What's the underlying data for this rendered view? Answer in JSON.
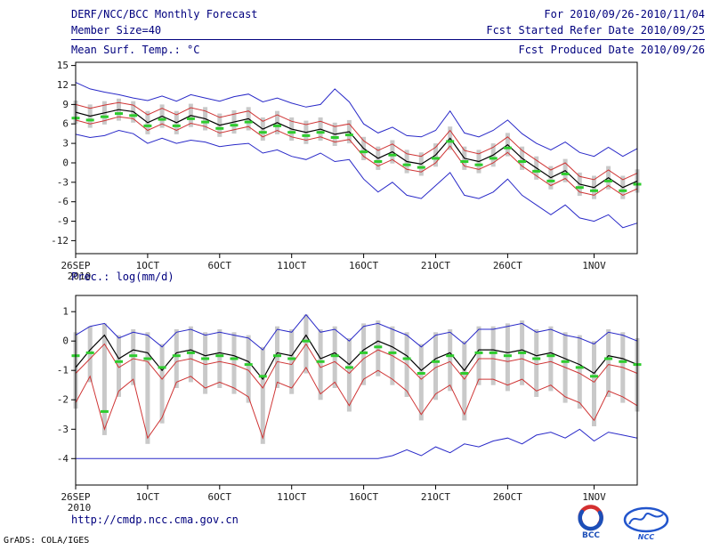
{
  "header": {
    "title": "DERF/NCC/BCC Monthly Forecast",
    "member_size": "Member Size=40",
    "forecast_range": "For 2010/09/26-2010/11/04",
    "refer_date": "Fcst Started Refer Date 2010/09/25",
    "produced_date": "Fcst Produced Date 2010/09/26"
  },
  "footer": {
    "url": "http://cmdp.ncc.cma.gov.cn",
    "grads_stamp": "GrADS: COLA/IGES",
    "bcc_logo_text": "BCC",
    "ncc_logo_text": "NCC"
  },
  "colors": {
    "header_text": "#00007e",
    "blue_line": "#2929c8",
    "red_line": "#cf3434",
    "black_line": "#000000",
    "green_dash": "#2ecc2e",
    "spread_bar": "#c9c9c9",
    "frame": "#000000"
  },
  "chart_data": [
    {
      "type": "line",
      "title": "Mean Surf. Temp.: °C",
      "ylabel": "°C",
      "ylim": [
        -14.0,
        15.5
      ],
      "yticks": [
        15,
        12,
        9,
        6,
        3,
        0,
        -3,
        -6,
        -9,
        -12
      ],
      "grid": false,
      "legend": "none",
      "xticks": [
        {
          "day": 0,
          "label": "26SEP",
          "sub": "2010"
        },
        {
          "day": 5,
          "label": "1OCT"
        },
        {
          "day": 10,
          "label": "6OCT"
        },
        {
          "day": 15,
          "label": "11OCT"
        },
        {
          "day": 20,
          "label": "16OCT"
        },
        {
          "day": 25,
          "label": "21OCT"
        },
        {
          "day": 30,
          "label": "26OCT"
        },
        {
          "day": 36,
          "label": "1NOV"
        }
      ],
      "series": [
        {
          "name": "ensemble-max",
          "color": "#2929c8",
          "values": [
            12.4,
            11.4,
            10.9,
            10.5,
            10.0,
            9.6,
            10.3,
            9.5,
            10.5,
            10.0,
            9.5,
            10.2,
            10.6,
            9.4,
            10.0,
            9.2,
            8.6,
            9.0,
            11.4,
            9.4,
            6.0,
            4.6,
            5.5,
            4.2,
            4.0,
            5.0,
            8.0,
            4.6,
            4.0,
            5.0,
            6.6,
            4.5,
            3.0,
            2.0,
            3.2,
            1.6,
            1.0,
            2.4,
            1.0,
            2.2
          ]
        },
        {
          "name": "upper-quartile",
          "color": "#cf3434",
          "values": [
            9.0,
            8.4,
            8.9,
            9.3,
            8.9,
            7.4,
            8.4,
            7.4,
            8.5,
            8.0,
            7.0,
            7.5,
            8.0,
            6.4,
            7.4,
            6.4,
            5.9,
            6.4,
            5.6,
            6.0,
            3.4,
            1.9,
            2.9,
            1.4,
            1.0,
            2.4,
            5.0,
            1.9,
            1.4,
            2.4,
            4.0,
            1.9,
            0.4,
            -1.1,
            0.0,
            -2.1,
            -2.6,
            -1.1,
            -2.6,
            -1.6
          ]
        },
        {
          "name": "ensemble-mean",
          "color": "#000000",
          "values": [
            7.8,
            7.2,
            7.7,
            8.2,
            7.9,
            6.2,
            7.2,
            6.2,
            7.3,
            6.8,
            5.8,
            6.3,
            6.8,
            5.2,
            6.2,
            5.2,
            4.7,
            5.2,
            4.4,
            4.8,
            2.2,
            0.7,
            1.7,
            0.2,
            -0.2,
            1.2,
            3.8,
            0.7,
            0.2,
            1.2,
            2.8,
            0.7,
            -0.8,
            -2.3,
            -1.2,
            -3.3,
            -3.8,
            -2.3,
            -3.8,
            -2.8
          ]
        },
        {
          "name": "lower-quartile",
          "color": "#cf3434",
          "values": [
            6.6,
            6.0,
            6.5,
            7.1,
            6.8,
            5.0,
            6.0,
            5.0,
            6.1,
            5.6,
            4.6,
            5.1,
            5.6,
            4.0,
            5.0,
            4.0,
            3.5,
            4.0,
            3.2,
            3.6,
            1.0,
            -0.5,
            0.5,
            -1.0,
            -1.4,
            0.0,
            2.6,
            -0.5,
            -1.0,
            0.0,
            1.6,
            -0.5,
            -2.0,
            -3.5,
            -2.4,
            -4.5,
            -5.0,
            -3.5,
            -5.0,
            -4.0
          ]
        },
        {
          "name": "ensemble-min",
          "color": "#2929c8",
          "values": [
            4.4,
            3.9,
            4.2,
            5.0,
            4.5,
            3.0,
            3.8,
            3.0,
            3.5,
            3.2,
            2.5,
            2.8,
            3.0,
            1.5,
            2.0,
            1.0,
            0.5,
            1.5,
            0.2,
            0.5,
            -2.5,
            -4.5,
            -3.0,
            -5.0,
            -5.5,
            -3.5,
            -1.5,
            -5.0,
            -5.5,
            -4.5,
            -2.5,
            -5.0,
            -6.5,
            -8.0,
            -6.5,
            -8.5,
            -9.0,
            -8.0,
            -10.0,
            -9.3
          ]
        }
      ],
      "bars": {
        "name": "ensemble-spread",
        "color": "#c9c9c9",
        "high": [
          9.6,
          9.0,
          9.5,
          9.9,
          9.5,
          8.0,
          9.0,
          8.0,
          9.1,
          8.6,
          7.6,
          8.1,
          8.6,
          7.0,
          8.0,
          7.0,
          6.5,
          7.0,
          6.2,
          6.6,
          4.0,
          2.5,
          3.5,
          2.0,
          1.6,
          3.0,
          5.6,
          2.5,
          2.0,
          3.0,
          4.6,
          2.5,
          1.0,
          -0.5,
          0.6,
          -1.5,
          -2.0,
          -0.5,
          -2.0,
          -1.0
        ],
        "low": [
          6.0,
          5.4,
          5.9,
          6.5,
          6.2,
          4.4,
          5.4,
          4.4,
          5.5,
          5.0,
          4.0,
          4.5,
          5.0,
          3.4,
          4.4,
          3.4,
          2.9,
          3.4,
          2.6,
          3.0,
          0.4,
          -1.1,
          -0.1,
          -1.6,
          -2.0,
          -0.6,
          2.0,
          -1.1,
          -1.6,
          -0.6,
          1.0,
          -1.1,
          -2.6,
          -4.1,
          -3.0,
          -5.1,
          -5.6,
          -4.1,
          -5.6,
          -4.6
        ]
      },
      "dashes": {
        "name": "green-median",
        "color": "#2ecc2e",
        "values": [
          6.9,
          6.6,
          7.1,
          7.6,
          7.3,
          5.7,
          6.7,
          5.7,
          6.8,
          6.3,
          5.3,
          5.8,
          6.3,
          4.7,
          5.7,
          4.7,
          4.2,
          4.7,
          3.9,
          4.3,
          1.7,
          0.2,
          1.2,
          -0.3,
          -0.7,
          0.7,
          3.3,
          0.2,
          -0.3,
          0.7,
          2.3,
          0.2,
          -1.3,
          -2.8,
          -1.7,
          -3.8,
          -4.3,
          -2.8,
          -4.3,
          -3.3
        ]
      }
    },
    {
      "type": "line",
      "title": "Prec.: log(mm/d)",
      "ylabel": "log(mm/d)",
      "ylim": [
        -4.9,
        1.55
      ],
      "yticks": [
        1,
        0,
        -1,
        -2,
        -3,
        -4
      ],
      "grid": false,
      "legend": "none",
      "xticks": [
        {
          "day": 0,
          "label": "26SEP",
          "sub": "2010"
        },
        {
          "day": 5,
          "label": "1OCT"
        },
        {
          "day": 10,
          "label": "6OCT"
        },
        {
          "day": 15,
          "label": "11OCT"
        },
        {
          "day": 20,
          "label": "16OCT"
        },
        {
          "day": 25,
          "label": "21OCT"
        },
        {
          "day": 30,
          "label": "26OCT"
        },
        {
          "day": 36,
          "label": "1NOV"
        }
      ],
      "series": [
        {
          "name": "ensemble-max",
          "color": "#2929c8",
          "values": [
            0.2,
            0.5,
            0.6,
            0.1,
            0.3,
            0.2,
            -0.2,
            0.3,
            0.4,
            0.2,
            0.3,
            0.2,
            0.1,
            -0.3,
            0.4,
            0.3,
            0.9,
            0.3,
            0.4,
            0.0,
            0.5,
            0.6,
            0.4,
            0.2,
            -0.2,
            0.2,
            0.3,
            -0.1,
            0.4,
            0.4,
            0.5,
            0.6,
            0.3,
            0.4,
            0.2,
            0.1,
            -0.1,
            0.3,
            0.2,
            0.0
          ]
        },
        {
          "name": "ensemble-mean",
          "color": "#000000",
          "values": [
            -0.9,
            -0.3,
            0.2,
            -0.6,
            -0.3,
            -0.4,
            -1.0,
            -0.4,
            -0.3,
            -0.5,
            -0.4,
            -0.5,
            -0.7,
            -1.3,
            -0.4,
            -0.5,
            0.2,
            -0.6,
            -0.4,
            -0.8,
            -0.3,
            0.0,
            -0.2,
            -0.5,
            -1.0,
            -0.6,
            -0.4,
            -1.0,
            -0.3,
            -0.3,
            -0.4,
            -0.3,
            -0.5,
            -0.4,
            -0.6,
            -0.8,
            -1.1,
            -0.5,
            -0.6,
            -0.8
          ]
        },
        {
          "name": "upper-quartile",
          "color": "#cf3434",
          "values": [
            -1.1,
            -0.6,
            -0.1,
            -0.9,
            -0.6,
            -0.7,
            -1.3,
            -0.7,
            -0.6,
            -0.8,
            -0.7,
            -0.8,
            -1.0,
            -1.6,
            -0.7,
            -0.8,
            -0.1,
            -0.9,
            -0.7,
            -1.1,
            -0.6,
            -0.3,
            -0.5,
            -0.8,
            -1.3,
            -0.9,
            -0.7,
            -1.3,
            -0.6,
            -0.6,
            -0.7,
            -0.6,
            -0.8,
            -0.7,
            -0.9,
            -1.1,
            -1.4,
            -0.8,
            -0.9,
            -1.1
          ]
        },
        {
          "name": "lower-quartile",
          "color": "#cf3434",
          "values": [
            -2.1,
            -1.2,
            -3.0,
            -1.7,
            -1.3,
            -3.3,
            -2.6,
            -1.4,
            -1.2,
            -1.6,
            -1.4,
            -1.6,
            -1.9,
            -3.3,
            -1.4,
            -1.6,
            -0.9,
            -1.8,
            -1.4,
            -2.2,
            -1.3,
            -1.0,
            -1.3,
            -1.7,
            -2.5,
            -1.8,
            -1.5,
            -2.5,
            -1.3,
            -1.3,
            -1.5,
            -1.3,
            -1.7,
            -1.5,
            -1.9,
            -2.1,
            -2.7,
            -1.7,
            -1.9,
            -2.2
          ]
        },
        {
          "name": "ensemble-min",
          "color": "#2929c8",
          "values": [
            -4.0,
            -4.0,
            -4.0,
            -4.0,
            -4.0,
            -4.0,
            -4.0,
            -4.0,
            -4.0,
            -4.0,
            -4.0,
            -4.0,
            -4.0,
            -4.0,
            -4.0,
            -4.0,
            -4.0,
            -4.0,
            -4.0,
            -4.0,
            -4.0,
            -4.0,
            -3.9,
            -3.7,
            -3.9,
            -3.6,
            -3.8,
            -3.5,
            -3.6,
            -3.4,
            -3.3,
            -3.5,
            -3.2,
            -3.1,
            -3.3,
            -3.0,
            -3.4,
            -3.1,
            -3.2,
            -3.3
          ]
        }
      ],
      "bars": {
        "name": "ensemble-spread",
        "color": "#c9c9c9",
        "high": [
          0.3,
          0.5,
          0.6,
          0.2,
          0.4,
          0.3,
          -0.1,
          0.4,
          0.5,
          0.3,
          0.4,
          0.3,
          0.2,
          -0.2,
          0.5,
          0.4,
          0.9,
          0.4,
          0.5,
          0.1,
          0.6,
          0.7,
          0.5,
          0.3,
          -0.1,
          0.3,
          0.4,
          0.0,
          0.5,
          0.5,
          0.6,
          0.7,
          0.4,
          0.5,
          0.3,
          0.2,
          0.0,
          0.4,
          0.3,
          0.1
        ],
        "low": [
          -2.3,
          -1.4,
          -3.2,
          -1.9,
          -1.5,
          -3.5,
          -2.8,
          -1.6,
          -1.4,
          -1.8,
          -1.6,
          -1.8,
          -2.1,
          -3.5,
          -1.6,
          -1.8,
          -1.1,
          -2.0,
          -1.6,
          -2.4,
          -1.5,
          -1.2,
          -1.5,
          -1.9,
          -2.7,
          -2.0,
          -1.7,
          -2.7,
          -1.5,
          -1.5,
          -1.7,
          -1.5,
          -1.9,
          -1.7,
          -2.1,
          -2.3,
          -2.9,
          -1.9,
          -2.1,
          -2.4
        ]
      },
      "dashes": {
        "name": "green-median",
        "color": "#2ecc2e",
        "values": [
          -0.5,
          -0.4,
          -2.4,
          -0.7,
          -0.5,
          -0.6,
          -0.9,
          -0.5,
          -0.4,
          -0.6,
          -0.5,
          -0.6,
          -0.8,
          -1.2,
          -0.5,
          -0.6,
          0.0,
          -0.7,
          -0.5,
          -0.9,
          -0.4,
          -0.2,
          -0.4,
          -0.6,
          -1.1,
          -0.7,
          -0.5,
          -1.1,
          -0.4,
          -0.4,
          -0.5,
          -0.4,
          -0.6,
          -0.5,
          -0.7,
          -0.9,
          -1.2,
          -0.6,
          -0.7,
          -0.8
        ]
      }
    }
  ]
}
